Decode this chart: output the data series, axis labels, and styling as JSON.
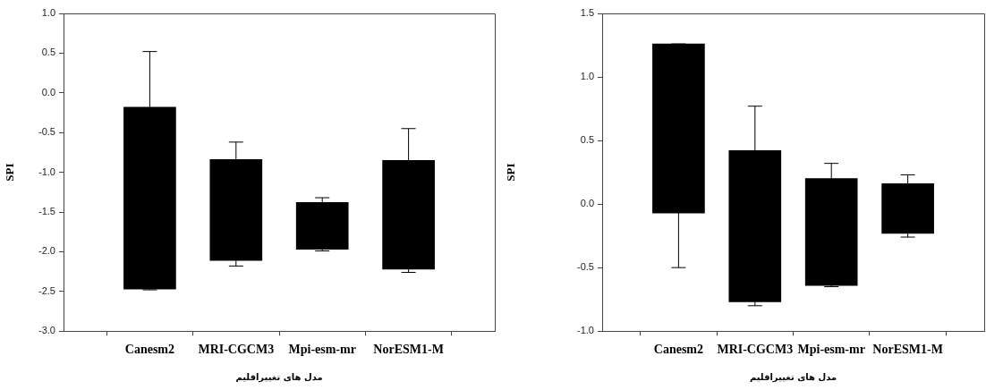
{
  "chart_data": [
    {
      "type": "box",
      "xlabel": "مدل های تغییراقلیم",
      "ylabel": "SPI",
      "categories": [
        "Canesm2",
        "MRI-CGCM3",
        "Mpi-esm-mr",
        "NorESM1-M"
      ],
      "color": "#000000",
      "grid": false,
      "boxes": [
        {
          "low": -2.48,
          "q1": -2.47,
          "q3": -0.18,
          "high": 0.52
        },
        {
          "low": -2.18,
          "q1": -2.11,
          "q3": -0.84,
          "high": -0.62
        },
        {
          "low": -1.99,
          "q1": -1.97,
          "q3": -1.38,
          "high": -1.32
        },
        {
          "low": -2.26,
          "q1": -2.22,
          "q3": -0.85,
          "high": -0.45
        }
      ],
      "ylim": [
        -3,
        1
      ],
      "yticks": [
        {
          "value": -3,
          "label": "-3.0"
        },
        -2.5,
        {
          "value": -2,
          "label": "-2.0"
        },
        -1.5,
        {
          "value": -1,
          "label": "-1.0"
        },
        -0.5,
        {
          "value": 0,
          "label": "0.0"
        },
        0.5,
        {
          "value": 1,
          "label": "1.0"
        }
      ]
    },
    {
      "type": "box",
      "xlabel": "مدل های تغییراقلیم",
      "ylabel": "SPI",
      "categories": [
        "Canesm2",
        "MRI-CGCM3",
        "Mpi-esm-mr",
        "NorESM1-M"
      ],
      "color": "#000000",
      "grid": false,
      "boxes": [
        {
          "low": -0.5,
          "q1": -0.07,
          "q3": 1.26,
          "high": 1.26
        },
        {
          "low": -0.8,
          "q1": -0.77,
          "q3": 0.42,
          "high": 0.77
        },
        {
          "low": -0.65,
          "q1": -0.64,
          "q3": 0.2,
          "high": 0.32
        },
        {
          "low": -0.26,
          "q1": -0.23,
          "q3": 0.16,
          "high": 0.23
        }
      ],
      "ylim": [
        -1,
        1.5
      ],
      "yticks": [
        {
          "value": -1,
          "label": "-1.0"
        },
        -0.5,
        {
          "value": 0,
          "label": "0.0"
        },
        0.5,
        {
          "value": 1,
          "label": "1.0"
        },
        1.5
      ]
    }
  ]
}
